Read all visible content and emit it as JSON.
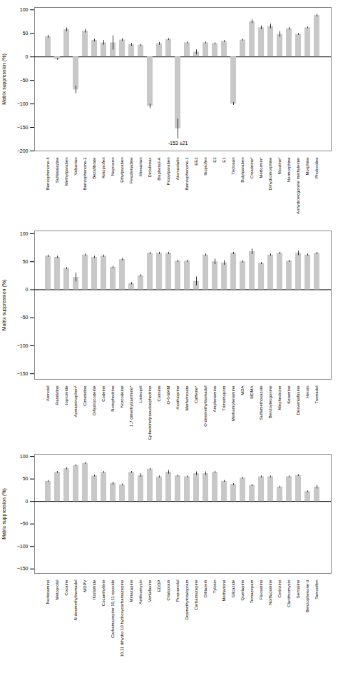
{
  "chart_data": [
    {
      "type": "bar",
      "ylabel": "Matrix suppression (%)",
      "categories": [
        "Benzophenone-4",
        "Sulfasalazine",
        "Methylparaben",
        "Valsartan",
        "Benzophenone-2",
        "Bezafibrate",
        "Ketoprofen",
        "Naproxen",
        "Ethylparaben",
        "Fexofenadine",
        "Irbesartan",
        "Diclofenac",
        "Bisphenol-A",
        "Propylparaben",
        "Atorvastatin",
        "Benzophenone-1",
        "EE2",
        "Ibuprofen",
        "E2",
        "E1",
        "Triclosan",
        "Butylparaben",
        "Creatinine*",
        "Metformin*",
        "Dihydromorphine",
        "Nicotine*",
        "Normorphine",
        "Anhydroecgonine methylester",
        "Morphine",
        "Pholcodine"
      ],
      "values": [
        43,
        -5,
        58,
        -70,
        55,
        35,
        30,
        30,
        36,
        26,
        25,
        -105,
        28,
        37,
        -153,
        30,
        10,
        30,
        28,
        33,
        -100,
        36,
        75,
        62,
        65,
        48,
        60,
        48,
        62,
        88
      ],
      "errors": [
        3,
        2,
        4,
        8,
        4,
        3,
        5,
        15,
        3,
        3,
        2,
        5,
        3,
        2,
        21,
        2,
        5,
        2,
        2,
        2,
        3,
        2,
        4,
        4,
        5,
        6,
        3,
        2,
        2,
        3
      ],
      "annotations": [
        {
          "text": "-153 ±21",
          "x": "Atorvastatin"
        }
      ],
      "color": "#c8c8c8",
      "ylim": [
        -200,
        105
      ],
      "yticks": [
        -200,
        -150,
        -100,
        -50,
        0,
        50,
        100
      ],
      "grid": false
    },
    {
      "type": "bar",
      "ylabel": "Matrix suppression (%)",
      "categories": [
        "Atenolol",
        "Ranitidine",
        "Iopromide",
        "Acetaminophen*",
        "Cimetidine",
        "Dihydrocodeine",
        "Codeine",
        "Norephedrine",
        "Norcodeine",
        "1,7 dimethylxanthine*",
        "Lisinopril",
        "Ephedrine/pseudoephedrine",
        "Cotinine",
        "O-6-MAM",
        "Azathioprine",
        "Methotrexate",
        "Caffeine*",
        "O-desmethyltramadol",
        "Amphetamine",
        "Trimethoprim",
        "Methamphetamine",
        "MDA",
        "MDMA",
        "Sulfamethoxazole",
        "Benzoylecgonine",
        "Mephedrone",
        "Ketamine",
        "Desvenlafaxine",
        "Heroin",
        "Tramadol"
      ],
      "values": [
        60,
        58,
        38,
        22,
        62,
        58,
        60,
        40,
        54,
        11,
        25,
        65,
        65,
        65,
        51,
        51,
        15,
        62,
        50,
        48,
        65,
        50,
        68,
        47,
        62,
        65,
        51,
        65,
        62,
        65
      ],
      "errors": [
        2,
        2,
        2,
        8,
        2,
        2,
        2,
        2,
        2,
        2,
        2,
        2,
        2,
        2,
        2,
        2,
        8,
        2,
        5,
        4,
        2,
        2,
        5,
        2,
        2,
        2,
        2,
        4,
        2,
        2
      ],
      "color": "#c8c8c8",
      "ylim": [
        -160,
        105
      ],
      "yticks": [
        -150,
        -100,
        -50,
        0,
        50,
        100
      ],
      "grid": false
    },
    {
      "type": "bar",
      "ylabel": "Matrix suppression (%)",
      "categories": [
        "Norketamine",
        "Metoprolol",
        "Cocaine",
        "N-desmethyltramadol",
        "MDPV",
        "Ifosfamide",
        "Cocaethylene",
        "Carbamazepine 10,11 epoxide",
        "10,11 dihydro 10 hydroxycarbamazepine",
        "Mirtazapine",
        "Azithromycin",
        "Venlafaxine",
        "EDDP",
        "Citalopram",
        "Propranolol",
        "Desmethylcitalopram",
        "Carbamazepine",
        "Diltiazem",
        "Tylosin",
        "Methadone",
        "Glicazide",
        "Quetiapine",
        "Temazepam",
        "Fluoxetine",
        "Norfluoxetine",
        "Cetirizine",
        "Clarithromycin",
        "Sertraline",
        "Benzophenone-3",
        "Tamoxifen"
      ],
      "values": [
        45,
        65,
        73,
        80,
        85,
        57,
        65,
        40,
        37,
        65,
        58,
        72,
        55,
        65,
        57,
        55,
        62,
        62,
        65,
        45,
        38,
        52,
        36,
        55,
        55,
        32,
        55,
        58,
        22,
        32
      ],
      "errors": [
        2,
        2,
        2,
        2,
        2,
        2,
        2,
        3,
        2,
        2,
        4,
        2,
        2,
        4,
        2,
        2,
        4,
        4,
        2,
        2,
        2,
        2,
        2,
        2,
        2,
        2,
        2,
        2,
        2,
        4
      ],
      "color": "#c8c8c8",
      "ylim": [
        -160,
        105
      ],
      "yticks": [
        -150,
        -100,
        -50,
        0,
        50,
        100
      ],
      "grid": false
    }
  ]
}
